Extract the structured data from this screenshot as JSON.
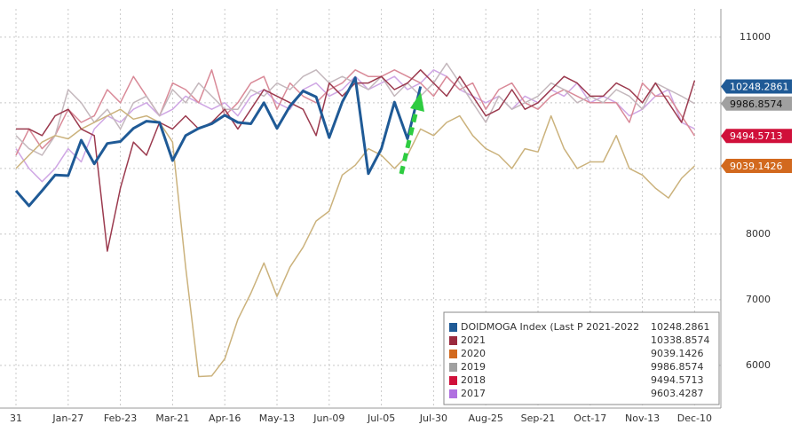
{
  "chart_data": {
    "type": "line",
    "categories": [
      "31",
      null,
      null,
      null,
      "Jan-27",
      null,
      null,
      null,
      "Feb-23",
      null,
      null,
      null,
      "Mar-21",
      null,
      null,
      null,
      "Apr-16",
      null,
      null,
      null,
      "May-13",
      null,
      null,
      null,
      "Jun-09",
      null,
      null,
      null,
      "Jul-05",
      null,
      null,
      null,
      "Jul-30",
      null,
      null,
      null,
      "Aug-25",
      null,
      null,
      null,
      "Sep-21",
      null,
      null,
      null,
      "Oct-17",
      null,
      null,
      null,
      "Nov-13",
      null,
      null,
      null,
      "Dec-10"
    ],
    "ylim": [
      5350,
      11430
    ],
    "yticks": [
      6000,
      7000,
      8000,
      9000,
      10000,
      11000
    ],
    "grid": true,
    "legend": "bottom-right",
    "series": [
      {
        "name": "DOIDMOGA Index (Last P 2021-2022",
        "color": "#1f5a96",
        "legend_color": "#1f5a96",
        "width": 3,
        "last": 10248.2861,
        "tag": true,
        "values": [
          8660,
          8430,
          8660,
          8900,
          8890,
          9430,
          9070,
          9380,
          9410,
          9610,
          9720,
          9700,
          9120,
          9500,
          9610,
          9680,
          9810,
          9700,
          9680,
          10000,
          9610,
          9950,
          10180,
          10090,
          9470,
          10010,
          10380,
          8920,
          9300,
          10010,
          9450,
          10248.2861,
          null,
          null,
          null,
          null,
          null,
          null,
          null,
          null,
          null,
          null,
          null,
          null,
          null,
          null,
          null,
          null,
          null,
          null,
          null,
          null,
          null
        ]
      },
      {
        "name": "2021",
        "color": "#9b3a4e",
        "legend_color": "#9b2a3e",
        "width": 1.5,
        "last": 10338.8574,
        "tag": false,
        "values": [
          9600,
          9600,
          9500,
          9800,
          9900,
          9600,
          9500,
          7740,
          8700,
          9400,
          9200,
          9700,
          9600,
          9800,
          9600,
          9700,
          9900,
          9600,
          9900,
          10200,
          10100,
          10000,
          9900,
          9500,
          10300,
          10100,
          10300,
          10300,
          10400,
          10200,
          10300,
          10500,
          10300,
          10100,
          10400,
          10100,
          9800,
          9900,
          10200,
          9900,
          10000,
          10200,
          10400,
          10300,
          10100,
          10100,
          10300,
          10200,
          10000,
          10300,
          10000,
          9700,
          10338.8574
        ]
      },
      {
        "name": "2020",
        "color": "#cbb27c",
        "legend_color": "#d2691e",
        "width": 1.5,
        "last": 9039.1426,
        "tag": true,
        "values": [
          9000,
          9200,
          9400,
          9500,
          9450,
          9600,
          9700,
          9800,
          9900,
          9750,
          9800,
          9700,
          9400,
          7500,
          5830,
          5840,
          6100,
          6700,
          7100,
          7560,
          7050,
          7500,
          7800,
          8200,
          8350,
          8900,
          9050,
          9300,
          9200,
          9000,
          9200,
          9600,
          9500,
          9700,
          9800,
          9500,
          9300,
          9200,
          9000,
          9300,
          9250,
          9800,
          9300,
          9000,
          9100,
          9100,
          9500,
          9000,
          8900,
          8700,
          8550,
          8850,
          9039.1426
        ]
      },
      {
        "name": "2019",
        "color": "#c4b8bd",
        "legend_color": "#a0a0a0",
        "width": 1.5,
        "last": 9986.8574,
        "tag": true,
        "values": [
          9500,
          9300,
          9200,
          9500,
          10200,
          10000,
          9700,
          9900,
          9600,
          10000,
          10100,
          9800,
          10200,
          10000,
          10300,
          10100,
          9900,
          9900,
          10200,
          10100,
          10300,
          10200,
          10400,
          10500,
          10300,
          10400,
          10300,
          10200,
          10400,
          10100,
          10300,
          10100,
          10300,
          10600,
          10300,
          10000,
          9700,
          10100,
          9900,
          10000,
          10100,
          10300,
          10200,
          10000,
          10100,
          10000,
          10200,
          10100,
          9900,
          10300,
          10200,
          10100,
          9986.8574
        ]
      },
      {
        "name": "2018",
        "color": "#d98a98",
        "legend_color": "#d0103a",
        "width": 1.5,
        "last": 9494.5713,
        "tag": true,
        "values": [
          9200,
          9600,
          9300,
          9500,
          9900,
          9700,
          9800,
          10200,
          10000,
          10400,
          10100,
          9800,
          10300,
          10200,
          10000,
          10500,
          9800,
          10000,
          10300,
          10400,
          9900,
          10300,
          10100,
          10000,
          10200,
          10300,
          10500,
          10400,
          10400,
          10500,
          10400,
          10300,
          10100,
          10400,
          10200,
          10300,
          9900,
          10200,
          10300,
          10000,
          9900,
          10100,
          10200,
          10100,
          10000,
          10000,
          10000,
          9700,
          10300,
          10100,
          10100,
          9800,
          9494.5713
        ]
      },
      {
        "name": "2017",
        "color": "#cfa6e4",
        "legend_color": "#b070e0",
        "width": 1.5,
        "last": 9603.4287,
        "tag": false,
        "values": [
          9300,
          9000,
          8800,
          9000,
          9300,
          9100,
          9600,
          9800,
          9700,
          9900,
          10000,
          9800,
          9900,
          10100,
          10000,
          9900,
          10000,
          9800,
          10100,
          10200,
          10000,
          9900,
          10200,
          10300,
          10100,
          10200,
          10400,
          10200,
          10300,
          10400,
          10200,
          10300,
          10500,
          10400,
          10200,
          10100,
          10000,
          10100,
          9900,
          10100,
          10000,
          10200,
          10100,
          10300,
          10000,
          10100,
          10000,
          9800,
          9900,
          10100,
          10200,
          9700,
          9603.4287
        ]
      }
    ]
  }
}
